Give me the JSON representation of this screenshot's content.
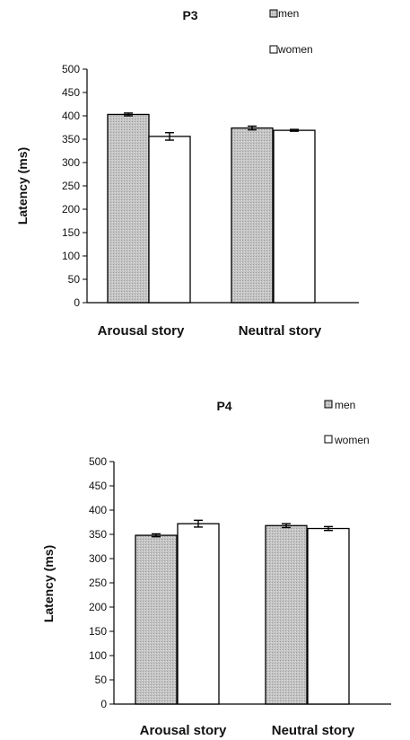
{
  "chart_data": [
    {
      "type": "bar",
      "title": "P3",
      "xlabel": "",
      "ylabel": "Latency (ms)",
      "ylim": [
        0,
        500
      ],
      "yticks": [
        0,
        50,
        100,
        150,
        200,
        250,
        300,
        350,
        400,
        450,
        500
      ],
      "categories": [
        "Arousal story",
        "Neutral story"
      ],
      "series": [
        {
          "name": "men",
          "values": [
            403,
            374
          ],
          "errors": [
            3,
            4
          ],
          "color": "#c8c8c8"
        },
        {
          "name": "women",
          "values": [
            356,
            369
          ],
          "errors": [
            8,
            2
          ],
          "color": "#ffffff"
        }
      ],
      "grid": false,
      "legend": "top-right"
    },
    {
      "type": "bar",
      "title": "P4",
      "xlabel": "",
      "ylabel": "Latency (ms)",
      "ylim": [
        0,
        500
      ],
      "yticks": [
        0,
        50,
        100,
        150,
        200,
        250,
        300,
        350,
        400,
        450,
        500
      ],
      "categories": [
        "Arousal story",
        "Neutral story"
      ],
      "series": [
        {
          "name": "men",
          "values": [
            348,
            368
          ],
          "errors": [
            3,
            4
          ],
          "color": "#c8c8c8"
        },
        {
          "name": "women",
          "values": [
            372,
            362
          ],
          "errors": [
            7,
            4
          ],
          "color": "#ffffff"
        }
      ],
      "grid": false,
      "legend": "top-right"
    }
  ]
}
